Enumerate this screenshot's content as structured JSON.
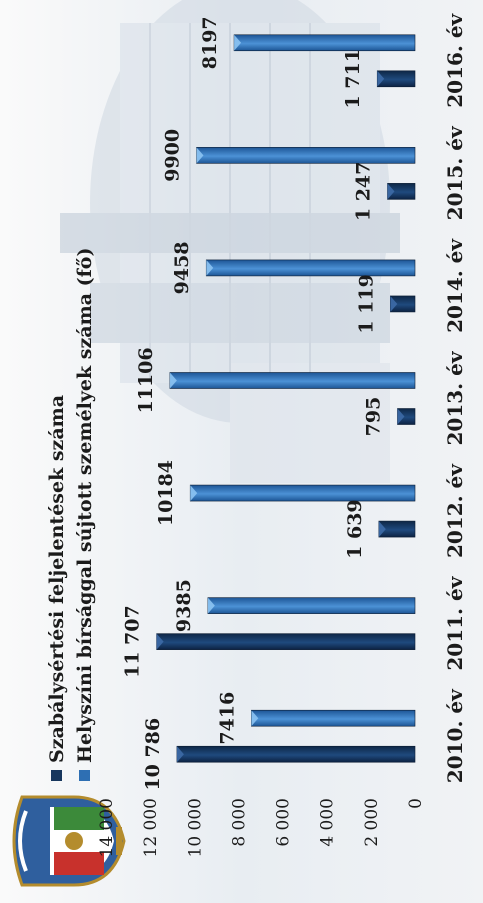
{
  "chart_data": {
    "type": "bar",
    "categories": [
      "2010. év",
      "2011. év",
      "2012. év",
      "2013. év",
      "2014. év",
      "2015. év",
      "2016. év"
    ],
    "series": [
      {
        "name": "Szabálysértési feljelentések száma",
        "values": [
          10786,
          11707,
          1639,
          795,
          1119,
          1247,
          1711
        ],
        "labels": [
          "10 786",
          "11 707",
          "1 639",
          "795",
          "1 119",
          "1 247",
          "1 711"
        ],
        "color": "#17365d"
      },
      {
        "name": "Helyszíni bírsággal sújtott személyek száma (fő)",
        "values": [
          7416,
          9385,
          10184,
          11106,
          9458,
          9900,
          8197
        ],
        "labels": [
          "7416",
          "9385",
          "10184",
          "11106",
          "9458",
          "9900",
          "8197"
        ],
        "color": "#2e6fb3"
      }
    ],
    "y_ticks": [
      "0",
      "2 000",
      "4 000",
      "6 000",
      "8 000",
      "10 000",
      "12 000",
      "14 000"
    ],
    "ylim": [
      0,
      14000
    ],
    "grid": false,
    "legend_position": "top"
  }
}
